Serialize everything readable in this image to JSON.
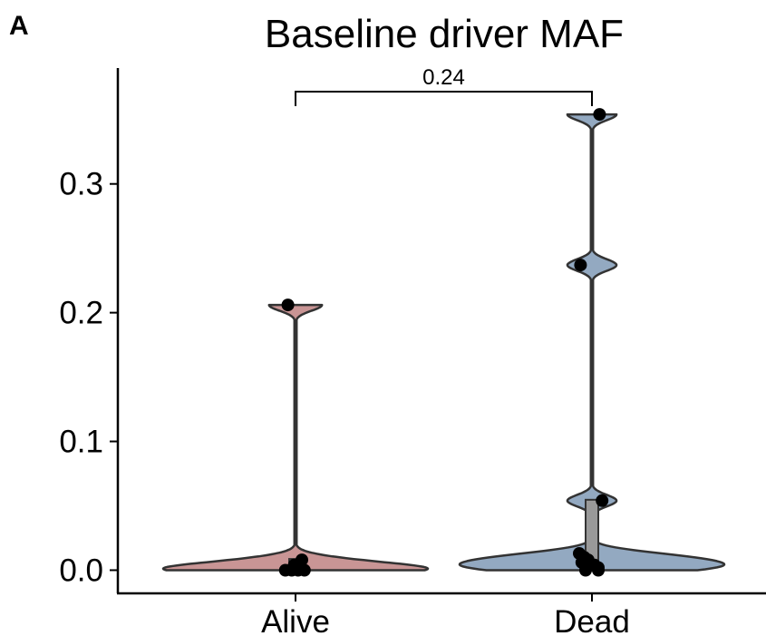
{
  "panel_label": "A",
  "chart_data": {
    "type": "violin",
    "title": "Baseline driver MAF",
    "xlabel": "",
    "ylabel": "",
    "ylim": [
      -0.018,
      0.39
    ],
    "yticks": [
      0.0,
      0.1,
      0.2,
      0.3
    ],
    "ytick_labels": [
      "0.0",
      "0.1",
      "0.2",
      "0.3"
    ],
    "categories": [
      "Alive",
      "Dead"
    ],
    "groups": [
      {
        "category": "Alive",
        "color": "#c99595",
        "median": 0.003,
        "points": [
          {
            "value": 0.206,
            "jitter": -0.06
          },
          {
            "value": 0.0,
            "jitter": -0.08
          },
          {
            "value": 0.0,
            "jitter": -0.03
          },
          {
            "value": 0.0,
            "jitter": 0.02
          },
          {
            "value": 0.0,
            "jitter": 0.07
          },
          {
            "value": 0.008,
            "jitter": 0.05
          },
          {
            "value": 0.004,
            "jitter": -0.01
          }
        ]
      },
      {
        "category": "Dead",
        "color": "#93a9c1",
        "median": 0.006,
        "points": [
          {
            "value": 0.354,
            "jitter": 0.06
          },
          {
            "value": 0.237,
            "jitter": -0.09
          },
          {
            "value": 0.054,
            "jitter": 0.08
          },
          {
            "value": 0.013,
            "jitter": -0.1
          },
          {
            "value": 0.01,
            "jitter": -0.06
          },
          {
            "value": 0.008,
            "jitter": -0.03
          },
          {
            "value": 0.006,
            "jitter": -0.08
          },
          {
            "value": 0.004,
            "jitter": 0.02
          },
          {
            "value": 0.002,
            "jitter": 0.05
          },
          {
            "value": 0.0,
            "jitter": -0.05
          },
          {
            "value": 0.0,
            "jitter": 0.05
          }
        ]
      }
    ],
    "comparison": {
      "from": "Alive",
      "to": "Dead",
      "label": "0.24"
    },
    "grid": false,
    "legend": "none"
  }
}
